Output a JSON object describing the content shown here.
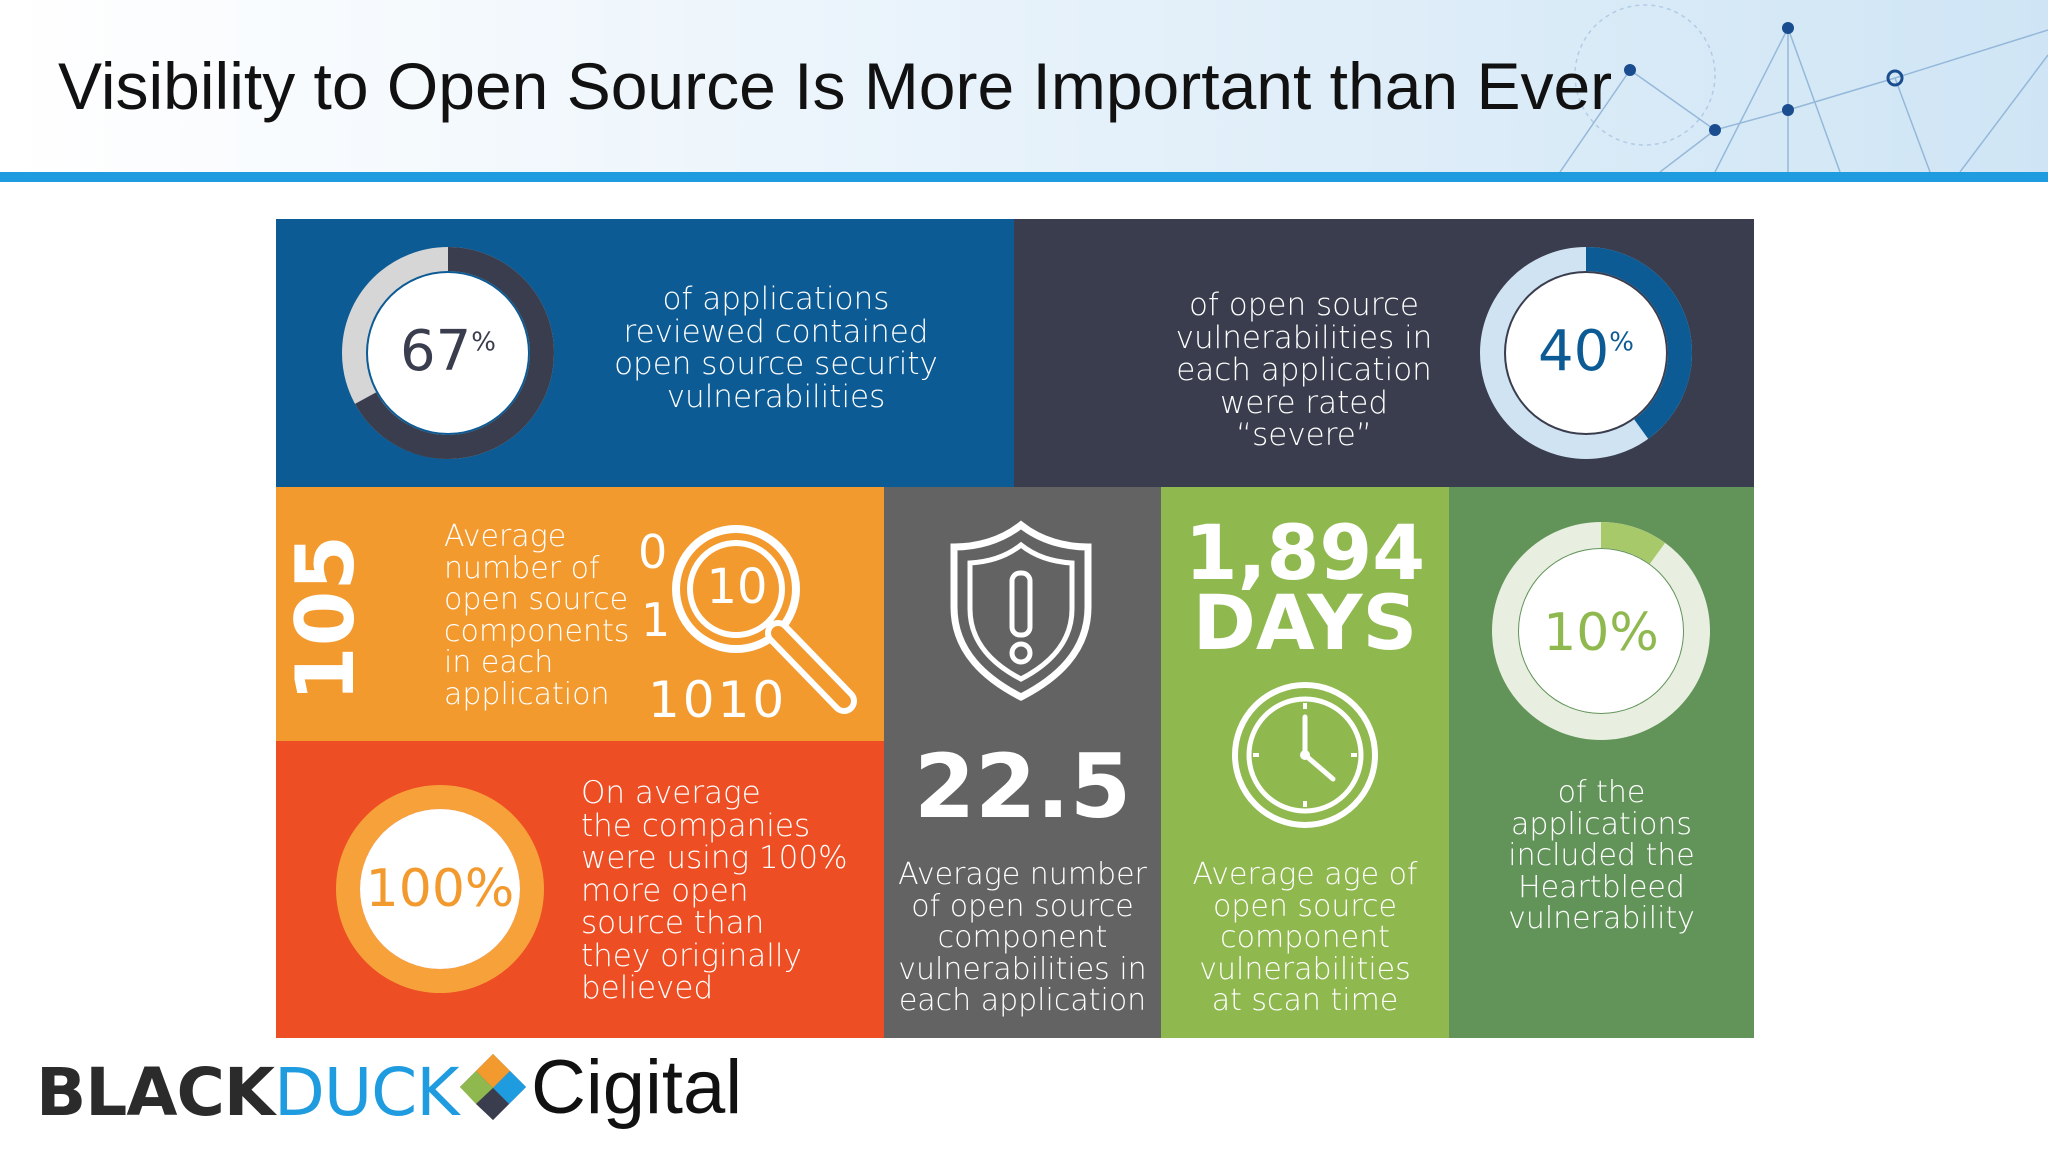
{
  "slide": {
    "title": "Visibility to Open Source Is More Important than Ever"
  },
  "colors": {
    "header_rule": "#1f9be0",
    "blue": "#0c5b95",
    "navy": "#3a3d4d",
    "orange": "#f39a2f",
    "red_orange": "#ed4e24",
    "gray": "#636363",
    "light_green": "#8fb84f",
    "green": "#62945a"
  },
  "stats": {
    "apps_with_vulns": {
      "value": "67",
      "unit": "%",
      "fraction": 0.67,
      "label_lines": [
        "of applications",
        "reviewed contained",
        "open source security",
        "vulnerabilities"
      ]
    },
    "severe": {
      "value": "40",
      "unit": "%",
      "fraction": 0.4,
      "label_lines": [
        "of open source",
        "vulnerabilities in",
        "each application",
        "were rated “severe”"
      ]
    },
    "components": {
      "value": "105",
      "label_lines": [
        "Average",
        "number of",
        "open source",
        "components",
        "in each",
        "application"
      ],
      "binary_top": "0",
      "binary_mid": "1",
      "binary_bottom": "1010",
      "lens_text": "10",
      "icon": "magnifier-icon"
    },
    "underestimate": {
      "value": "100%",
      "label_lines": [
        "On average",
        "the companies",
        "were using 100%",
        "more open",
        "source than",
        "they originally",
        "believed"
      ]
    },
    "vulns_per_app": {
      "value": "22.5",
      "label_lines": [
        "Average number",
        "of open source",
        "component",
        "vulnerabilities in",
        "each application"
      ],
      "icon": "shield-warning-icon"
    },
    "age": {
      "value": "1,894",
      "unit": "DAYS",
      "label_lines": [
        "Average age of",
        "open source",
        "component",
        "vulnerabilities",
        "at scan time"
      ],
      "icon": "clock-icon"
    },
    "heartbleed": {
      "value": "10%",
      "fraction": 0.1,
      "label_lines": [
        "of the",
        "applications",
        "included the",
        "Heartbleed",
        "vulnerability"
      ]
    }
  },
  "footer": {
    "brand_black": "BLACK",
    "brand_duck": "DUCK",
    "brand_cigital": "Cigital"
  }
}
